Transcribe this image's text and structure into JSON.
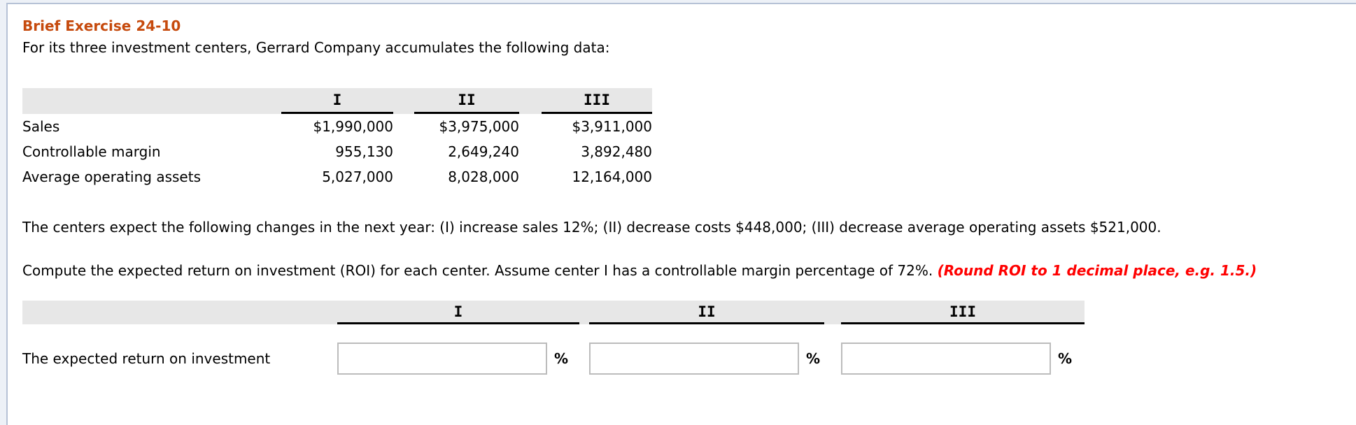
{
  "page": {
    "title": "Brief Exercise 24-10",
    "intro": "For its three investment centers, Gerrard Company accumulates the following data:"
  },
  "colors": {
    "title_accent": "#c64a0d",
    "emphasis_red": "#ff0000",
    "header_band": "#e7e7e7",
    "panel_border": "#b6c2d6"
  },
  "data_table": {
    "columns": [
      "I",
      "II",
      "III"
    ],
    "rows": [
      {
        "label": "Sales",
        "values": [
          "$1,990,000",
          "$3,975,000",
          "$3,911,000"
        ]
      },
      {
        "label": "Controllable margin",
        "values": [
          "955,130",
          "2,649,240",
          "3,892,480"
        ]
      },
      {
        "label": "Average operating assets",
        "values": [
          "5,027,000",
          "8,028,000",
          "12,164,000"
        ]
      }
    ]
  },
  "paragraphs": {
    "changes": "The centers expect the following changes in the next year: (I) increase sales 12%; (II) decrease costs $448,000; (III) decrease average operating assets $521,000.",
    "instruction_plain": "Compute the expected return on investment (ROI) for each center. Assume center I has a controllable margin percentage of 72%. ",
    "instruction_emphasis": "(Round ROI to 1 decimal place, e.g. 1.5.)"
  },
  "answer_table": {
    "columns": [
      "I",
      "II",
      "III"
    ],
    "row_label": "The expected return on investment",
    "unit": "%",
    "inputs": [
      {
        "value": ""
      },
      {
        "value": ""
      },
      {
        "value": ""
      }
    ]
  }
}
